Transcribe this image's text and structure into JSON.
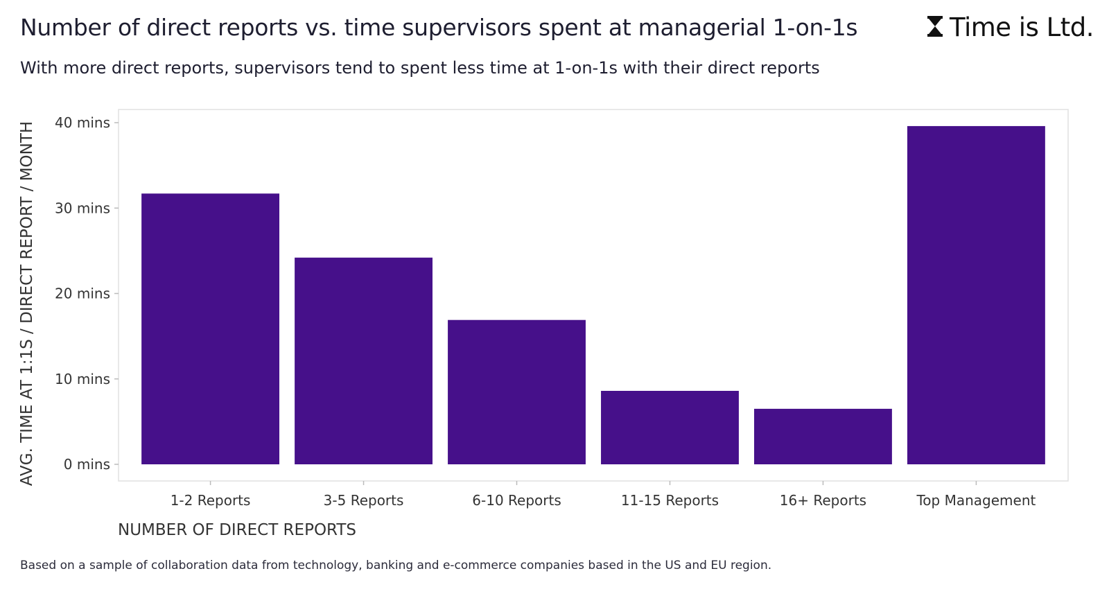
{
  "header": {
    "title": "Number of direct reports vs. time supervisors spent at managerial 1-on-1s",
    "subtitle": "With more direct reports, supervisors tend to spent less time at 1-on-1s with their direct reports",
    "brand": "Time is Ltd.",
    "brand_icon": "hourglass-icon"
  },
  "footnote": "Based on a sample of collaboration data from technology, banking and e-commerce companies based in the US and EU region.",
  "colors": {
    "bar": "#46108a",
    "panel_border": "#e0e0e0"
  },
  "chart_data": {
    "type": "bar",
    "categories": [
      "1-2 Reports",
      "3-5 Reports",
      "6-10 Reports",
      "11-15 Reports",
      "16+ Reports",
      "Top Management"
    ],
    "values": [
      31.7,
      24.2,
      16.9,
      8.6,
      6.5,
      39.6
    ],
    "xlabel": "NUMBER OF DIRECT REPORTS",
    "ylabel": "AVG. TIME AT 1:1S / DIRECT REPORT / MONTH",
    "yticks": [
      0,
      10,
      20,
      30,
      40
    ],
    "ytick_labels": [
      "0 mins",
      "10 mins",
      "20 mins",
      "30 mins",
      "40 mins"
    ],
    "ylim": [
      0,
      41.5
    ],
    "grid": false,
    "legend": "none"
  }
}
